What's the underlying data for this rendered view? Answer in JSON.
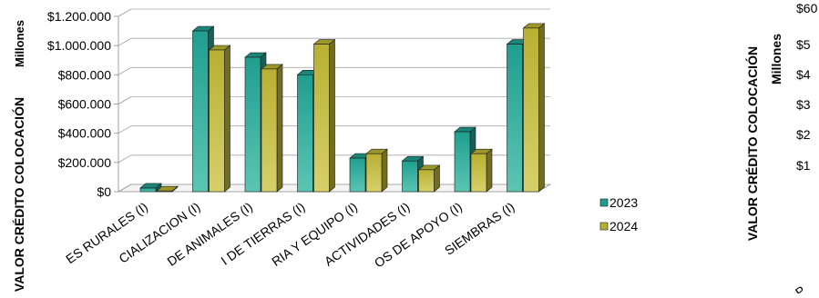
{
  "chart_data": [
    {
      "type": "bar",
      "title": "",
      "xlabel": "",
      "ylabel": "VALOR CRÉDITO COLOCACIÓN",
      "ylabel_overlap": "Millones",
      "ylim": [
        0,
        1200000
      ],
      "yticks": [
        {
          "value": 0,
          "label": "$0"
        },
        {
          "value": 200000,
          "label": "$200.000"
        },
        {
          "value": 400000,
          "label": "$400.000"
        },
        {
          "value": 600000,
          "label": "$600.000"
        },
        {
          "value": 800000,
          "label": "$800.000"
        },
        {
          "value": 1000000,
          "label": "$1.000.000"
        },
        {
          "value": 1200000,
          "label": "$1.200.000"
        }
      ],
      "grid": true,
      "three_d": true,
      "legend_position": "right",
      "categories": [
        "ES RURALES (I)",
        "CIALIZACION (I)",
        "DE ANIMALES (I)",
        "I DE TIERRAS (I)",
        "RIA Y EQUIPO (I)",
        "ACTIVIDADES (I)",
        "OS DE APOYO (I)",
        "SIEMBRAS (I)"
      ],
      "series": [
        {
          "name": "2023",
          "color": "#1f9e90",
          "values": [
            25000,
            1100000,
            920000,
            800000,
            230000,
            210000,
            410000,
            1010000
          ]
        },
        {
          "name": "2024",
          "color": "#b8b032",
          "values": [
            5000,
            970000,
            840000,
            1010000,
            260000,
            150000,
            260000,
            1120000
          ]
        }
      ]
    },
    {
      "type": "bar",
      "title": "",
      "ylabel": "VALOR CRÉDITO COLOCACIÓN",
      "units_label": "Millones",
      "visible_tick_labels": [
        "$60",
        "$5",
        "$4",
        "$3",
        "$2",
        "$1"
      ],
      "cut_category_fragment": "S P",
      "series": []
    }
  ]
}
